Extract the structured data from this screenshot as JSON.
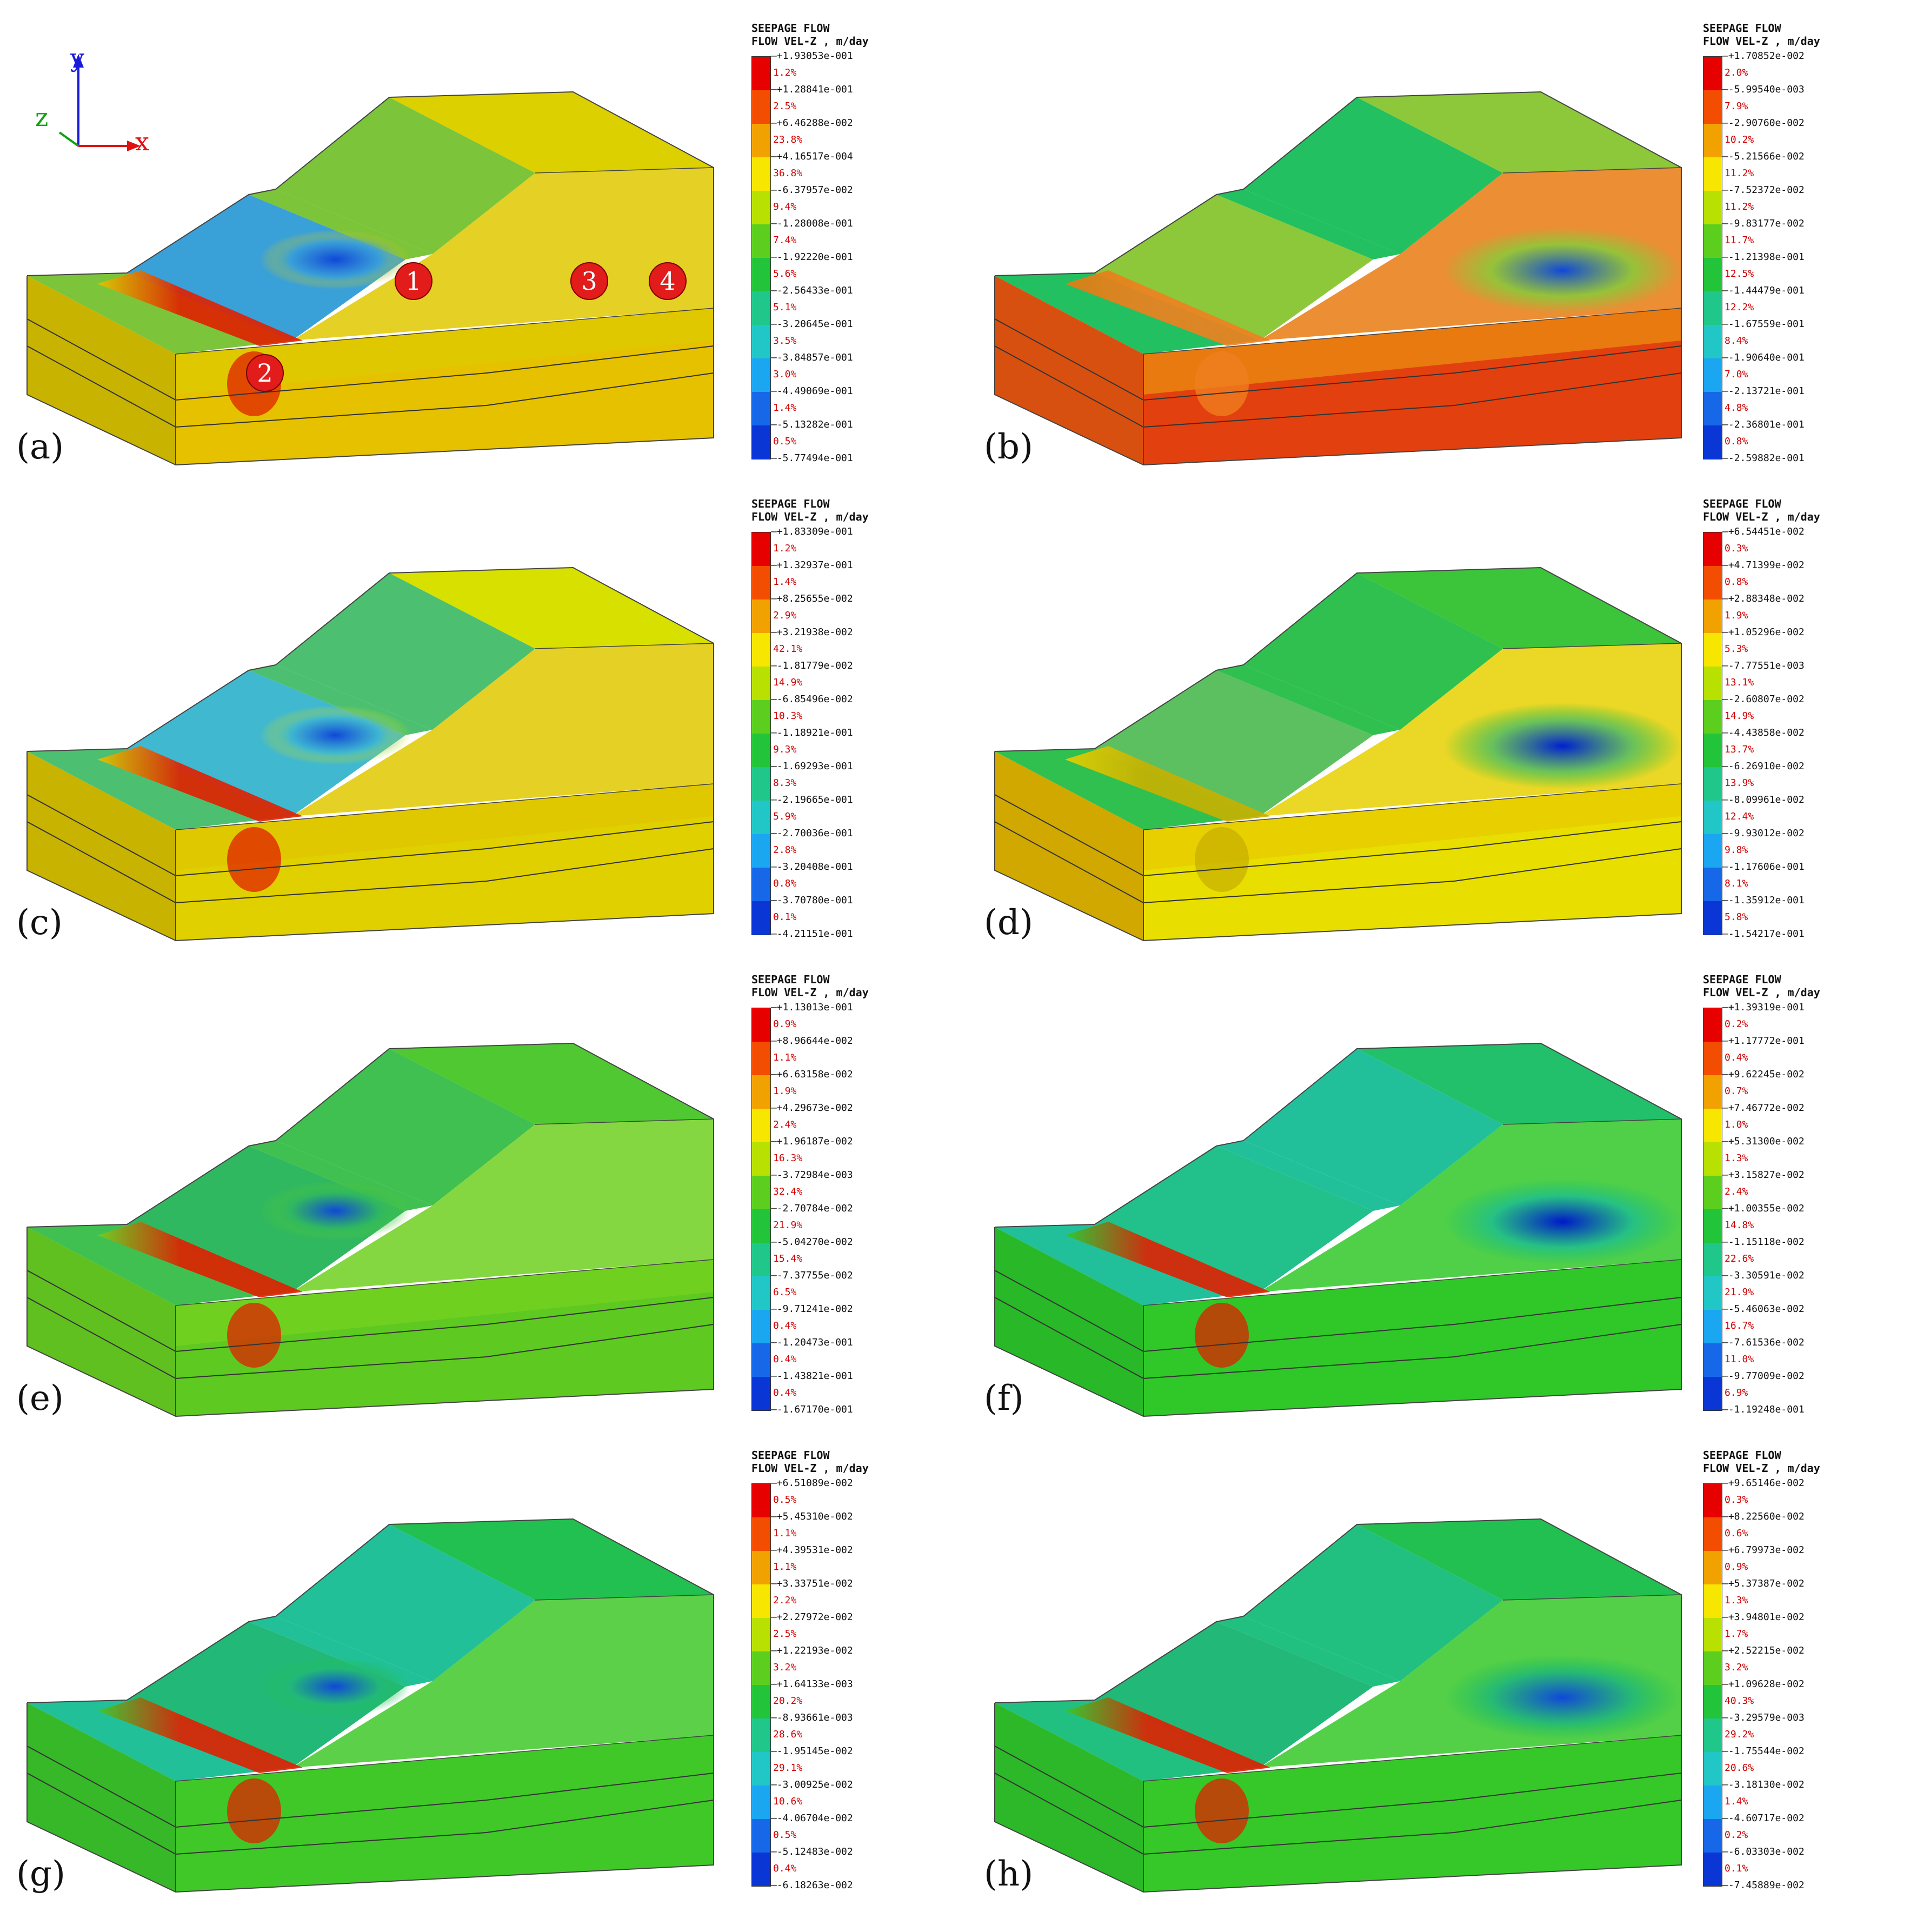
{
  "legend_title": "SEEPAGE FLOW",
  "legend_subtitle": "FLOW VEL-Z , m/day",
  "axes": {
    "x": "x",
    "y": "y",
    "z": "z"
  },
  "markers": [
    "1",
    "2",
    "3",
    "4"
  ],
  "palette": [
    "#e60000",
    "#f24d00",
    "#f2a200",
    "#f7e600",
    "#b8e000",
    "#5ccf1e",
    "#22c53a",
    "#1fc78a",
    "#21c7c7",
    "#1aa6f0",
    "#1668e8",
    "#0b36d6",
    "#0000c8"
  ],
  "panels": [
    {
      "label": "(a)",
      "pct": [
        "1.2%",
        "2.5%",
        "23.8%",
        "36.8%",
        "9.4%",
        "7.4%",
        "5.6%",
        "5.1%",
        "3.5%",
        "3.0%",
        "1.4%",
        "0.5%"
      ],
      "values": [
        "+1.93053e-001",
        "+1.28841e-001",
        "+6.46288e-002",
        "+4.16517e-004",
        "-6.37957e-002",
        "-1.28008e-001",
        "-1.92220e-001",
        "-2.56433e-001",
        "-3.20645e-001",
        "-3.84857e-001",
        "-4.49069e-001",
        "-5.13282e-001",
        "-5.77494e-001"
      ]
    },
    {
      "label": "(b)",
      "pct": [
        "2.0%",
        "7.9%",
        "10.2%",
        "11.2%",
        "11.2%",
        "11.7%",
        "12.5%",
        "12.2%",
        "8.4%",
        "7.0%",
        "4.8%",
        "0.8%"
      ],
      "values": [
        "+1.70852e-002",
        "-5.99540e-003",
        "-2.90760e-002",
        "-5.21566e-002",
        "-7.52372e-002",
        "-9.83177e-002",
        "-1.21398e-001",
        "-1.44479e-001",
        "-1.67559e-001",
        "-1.90640e-001",
        "-2.13721e-001",
        "-2.36801e-001",
        "-2.59882e-001"
      ]
    },
    {
      "label": "(c)",
      "pct": [
        "1.2%",
        "1.4%",
        "2.9%",
        "42.1%",
        "14.9%",
        "10.3%",
        "9.3%",
        "8.3%",
        "5.9%",
        "2.8%",
        "0.8%",
        "0.1%"
      ],
      "values": [
        "+1.83309e-001",
        "+1.32937e-001",
        "+8.25655e-002",
        "+3.21938e-002",
        "-1.81779e-002",
        "-6.85496e-002",
        "-1.18921e-001",
        "-1.69293e-001",
        "-2.19665e-001",
        "-2.70036e-001",
        "-3.20408e-001",
        "-3.70780e-001",
        "-4.21151e-001"
      ]
    },
    {
      "label": "(d)",
      "pct": [
        "0.3%",
        "0.8%",
        "1.9%",
        "5.3%",
        "13.1%",
        "14.9%",
        "13.7%",
        "13.9%",
        "12.4%",
        "9.8%",
        "8.1%",
        "5.8%"
      ],
      "values": [
        "+6.54451e-002",
        "+4.71399e-002",
        "+2.88348e-002",
        "+1.05296e-002",
        "-7.77551e-003",
        "-2.60807e-002",
        "-4.43858e-002",
        "-6.26910e-002",
        "-8.09961e-002",
        "-9.93012e-002",
        "-1.17606e-001",
        "-1.35912e-001",
        "-1.54217e-001"
      ]
    },
    {
      "label": "(e)",
      "pct": [
        "0.9%",
        "1.1%",
        "1.9%",
        "2.4%",
        "16.3%",
        "32.4%",
        "21.9%",
        "15.4%",
        "6.5%",
        "0.4%",
        "0.4%",
        "0.4%"
      ],
      "values": [
        "+1.13013e-001",
        "+8.96644e-002",
        "+6.63158e-002",
        "+4.29673e-002",
        "+1.96187e-002",
        "-3.72984e-003",
        "-2.70784e-002",
        "-5.04270e-002",
        "-7.37755e-002",
        "-9.71241e-002",
        "-1.20473e-001",
        "-1.43821e-001",
        "-1.67170e-001"
      ]
    },
    {
      "label": "(f)",
      "pct": [
        "0.2%",
        "0.4%",
        "0.7%",
        "1.0%",
        "1.3%",
        "2.4%",
        "14.8%",
        "22.6%",
        "21.9%",
        "16.7%",
        "11.0%",
        "6.9%"
      ],
      "values": [
        "+1.39319e-001",
        "+1.17772e-001",
        "+9.62245e-002",
        "+7.46772e-002",
        "+5.31300e-002",
        "+3.15827e-002",
        "+1.00355e-002",
        "-1.15118e-002",
        "-3.30591e-002",
        "-5.46063e-002",
        "-7.61536e-002",
        "-9.77009e-002",
        "-1.19248e-001"
      ]
    },
    {
      "label": "(g)",
      "pct": [
        "0.5%",
        "1.1%",
        "1.1%",
        "2.2%",
        "2.5%",
        "3.2%",
        "20.2%",
        "28.6%",
        "29.1%",
        "10.6%",
        "0.5%",
        "0.4%"
      ],
      "values": [
        "+6.51089e-002",
        "+5.45310e-002",
        "+4.39531e-002",
        "+3.33751e-002",
        "+2.27972e-002",
        "+1.22193e-002",
        "+1.64133e-003",
        "-8.93661e-003",
        "-1.95145e-002",
        "-3.00925e-002",
        "-4.06704e-002",
        "-5.12483e-002",
        "-6.18263e-002"
      ]
    },
    {
      "label": "(h)",
      "pct": [
        "0.3%",
        "0.6%",
        "0.9%",
        "1.3%",
        "1.7%",
        "3.2%",
        "40.3%",
        "29.2%",
        "20.6%",
        "1.4%",
        "0.2%",
        "0.1%"
      ],
      "values": [
        "+9.65146e-002",
        "+8.22560e-002",
        "+6.79973e-002",
        "+5.37387e-002",
        "+3.94801e-002",
        "+2.52215e-002",
        "+1.09628e-002",
        "-3.29579e-003",
        "-1.75544e-002",
        "-3.18130e-002",
        "-4.60717e-002",
        "-6.03303e-002",
        "-7.45889e-002"
      ]
    }
  ]
}
